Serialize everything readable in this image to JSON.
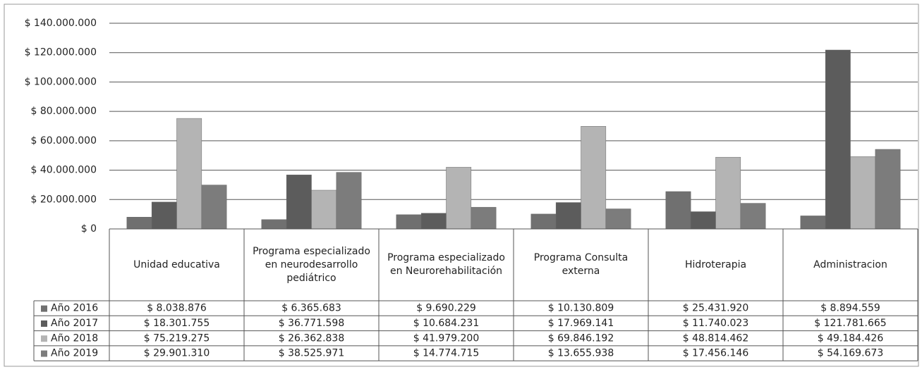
{
  "chart_data": {
    "type": "bar",
    "categories": [
      "Unidad educativa",
      "Programa especializado en neurodesarrollo pediátrico",
      "Programa especializado en Neurorehabilitación",
      "Programa Consulta externa",
      "Hidroterapia",
      "Administracion"
    ],
    "series": [
      {
        "name": "Año 2016",
        "color": "#707070",
        "values": [
          8038876,
          6365683,
          9690229,
          10130809,
          25431920,
          8894559
        ],
        "value_labels": [
          "$ 8.038.876",
          "$ 6.365.683",
          "$ 9.690.229",
          "$ 10.130.809",
          "$ 25.431.920",
          "$ 8.894.559"
        ]
      },
      {
        "name": "Año 2017",
        "color": "#5c5c5c",
        "values": [
          18301755,
          36771598,
          10684231,
          17969141,
          11740023,
          121781665
        ],
        "value_labels": [
          "$ 18.301.755",
          "$ 36.771.598",
          "$ 10.684.231",
          "$ 17.969.141",
          "$ 11.740.023",
          "$ 121.781.665"
        ]
      },
      {
        "name": "Año 2018",
        "color": "#b4b4b4",
        "values": [
          75219275,
          26362838,
          41979200,
          69846192,
          48814462,
          49184426
        ],
        "value_labels": [
          "$ 75.219.275",
          "$ 26.362.838",
          "$ 41.979.200",
          "$ 69.846.192",
          "$ 48.814.462",
          "$ 49.184.426"
        ]
      },
      {
        "name": "Año 2019",
        "color": "#7c7c7c",
        "values": [
          29901310,
          38525971,
          14774715,
          13655938,
          17456146,
          54169673
        ],
        "value_labels": [
          "$ 29.901.310",
          "$ 38.525.971",
          "$ 14.774.715",
          "$ 13.655.938",
          "$ 17.456.146",
          "$ 54.169.673"
        ]
      }
    ],
    "ylim": [
      0,
      140000000
    ],
    "yticks": [
      {
        "value": 0,
        "label": "$ 0"
      },
      {
        "value": 20000000,
        "label": "$ 20.000.000"
      },
      {
        "value": 40000000,
        "label": "$ 40.000.000"
      },
      {
        "value": 60000000,
        "label": "$ 60.000.000"
      },
      {
        "value": 80000000,
        "label": "$ 80.000.000"
      },
      {
        "value": 100000000,
        "label": "$ 100.000.000"
      },
      {
        "value": 120000000,
        "label": "$ 120.000.000"
      },
      {
        "value": 140000000,
        "label": "$ 140.000.000"
      }
    ],
    "grid": true
  }
}
